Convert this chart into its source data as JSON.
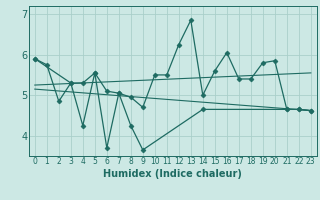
{
  "background_color": "#cce8e4",
  "grid_color": "#aacfca",
  "line_color": "#1e6b62",
  "xlabel": "Humidex (Indice chaleur)",
  "xlim": [
    -0.5,
    23.5
  ],
  "ylim": [
    3.5,
    7.2
  ],
  "yticks": [
    4,
    5,
    6,
    7
  ],
  "xtick_labels": [
    "0",
    "1",
    "2",
    "3",
    "4",
    "5",
    "6",
    "7",
    "8",
    "9",
    "10",
    "11",
    "12",
    "13",
    "14",
    "15",
    "16",
    "17",
    "18",
    "19",
    "20",
    "21",
    "22",
    "23"
  ],
  "series1_x": [
    0,
    1,
    2,
    3,
    4,
    5,
    6,
    7,
    8,
    9,
    10,
    11,
    12,
    13,
    14,
    15,
    16,
    17,
    18,
    19,
    20,
    21,
    22,
    23
  ],
  "series1_y": [
    5.9,
    5.75,
    4.85,
    5.3,
    5.3,
    5.55,
    5.1,
    5.05,
    4.95,
    4.7,
    5.5,
    5.5,
    6.25,
    6.85,
    5.0,
    5.6,
    6.05,
    5.4,
    5.4,
    5.8,
    5.85,
    4.65,
    4.65,
    4.62
  ],
  "series2_x": [
    0,
    3,
    4,
    5,
    6,
    7,
    8,
    9,
    14,
    21,
    22,
    23
  ],
  "series2_y": [
    5.9,
    5.3,
    4.25,
    5.55,
    3.7,
    5.05,
    4.25,
    3.65,
    4.65,
    4.65,
    4.65,
    4.62
  ],
  "trend1_x": [
    0,
    23
  ],
  "trend1_y": [
    5.25,
    5.55
  ],
  "trend2_x": [
    0,
    23
  ],
  "trend2_y": [
    5.15,
    4.62
  ]
}
